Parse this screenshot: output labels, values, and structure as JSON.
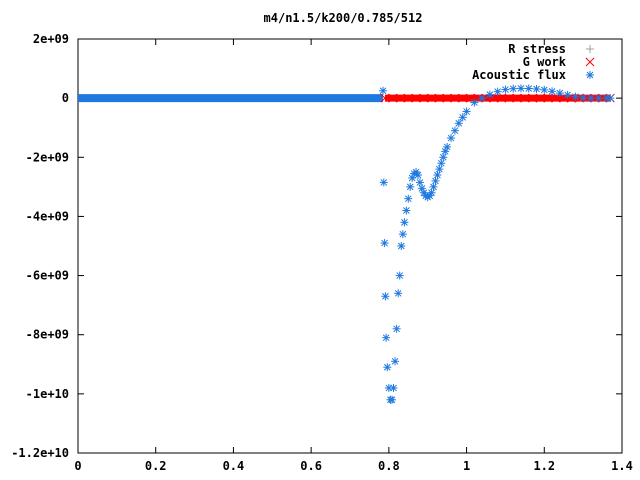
{
  "chart_data": {
    "type": "scatter",
    "title": "m4/n1.5/k200/0.785/512",
    "xlabel": "",
    "ylabel": "",
    "xlim": [
      0,
      1.4
    ],
    "ylim": [
      -12000000000.0,
      2000000000.0
    ],
    "grid": false,
    "legend_position": "top-right",
    "x_ticks": [
      "0",
      "0.2",
      "0.4",
      "0.6",
      "0.8",
      "1",
      "1.2",
      "1.4"
    ],
    "y_ticks": [
      "2e+09",
      "0",
      "-2e+09",
      "-4e+09",
      "-6e+09",
      "-8e+09",
      "-1e+10",
      "-1.2e+10"
    ],
    "x_tick_values": [
      0,
      0.2,
      0.4,
      0.6,
      0.8,
      1.0,
      1.2,
      1.4
    ],
    "y_tick_values": [
      2000000000.0,
      0,
      -2000000000.0,
      -4000000000.0,
      -6000000000.0,
      -8000000000.0,
      -10000000000.0,
      -12000000000.0
    ],
    "series": [
      {
        "name": "R stress",
        "marker": "plus",
        "color": "#a0a0a0",
        "x": [],
        "y": []
      },
      {
        "name": "G work",
        "marker": "cross",
        "color": "#ff0000",
        "x": [
          0.79,
          0.81,
          0.83,
          0.85,
          0.87,
          0.89,
          0.91,
          0.93,
          0.95,
          0.97,
          0.99,
          1.01,
          1.03,
          1.05,
          1.07,
          1.09,
          1.11,
          1.13,
          1.15,
          1.17,
          1.19,
          1.21,
          1.23,
          1.25,
          1.27,
          1.29,
          1.31,
          1.33,
          1.35,
          1.37
        ],
        "y": [
          0,
          0,
          0,
          0,
          0,
          0,
          0,
          0,
          0,
          0,
          0,
          0,
          0,
          0,
          0,
          0,
          0,
          0,
          0,
          0,
          0,
          0,
          0,
          0,
          0,
          0,
          0,
          0,
          0,
          0
        ]
      },
      {
        "name": "Acoustic flux",
        "marker": "star",
        "color": "#1e78e0",
        "x": [
          0.785,
          0.787,
          0.789,
          0.791,
          0.793,
          0.796,
          0.8,
          0.804,
          0.808,
          0.812,
          0.816,
          0.82,
          0.824,
          0.828,
          0.832,
          0.836,
          0.84,
          0.845,
          0.85,
          0.855,
          0.86,
          0.865,
          0.87,
          0.875,
          0.88,
          0.885,
          0.89,
          0.895,
          0.9,
          0.905,
          0.91,
          0.915,
          0.92,
          0.925,
          0.93,
          0.935,
          0.94,
          0.945,
          0.95,
          0.96,
          0.97,
          0.98,
          0.99,
          1.0,
          1.02,
          1.04,
          1.06,
          1.08,
          1.1,
          1.12,
          1.14,
          1.16,
          1.18,
          1.2,
          1.22,
          1.24,
          1.26,
          1.28,
          1.3,
          1.32,
          1.34,
          1.36,
          1.37
        ],
        "y": [
          250000000.0,
          -2850000000.0,
          -4900000000.0,
          -6700000000.0,
          -8100000000.0,
          -9100000000.0,
          -9800000000.0,
          -10200000000.0,
          -10200000000.0,
          -9800000000.0,
          -8900000000.0,
          -7800000000.0,
          -6600000000.0,
          -6000000000.0,
          -5000000000.0,
          -4600000000.0,
          -4200000000.0,
          -3800000000.0,
          -3400000000.0,
          -3000000000.0,
          -2700000000.0,
          -2550000000.0,
          -2500000000.0,
          -2600000000.0,
          -2850000000.0,
          -3050000000.0,
          -3200000000.0,
          -3300000000.0,
          -3350000000.0,
          -3300000000.0,
          -3200000000.0,
          -3000000000.0,
          -2800000000.0,
          -2600000000.0,
          -2400000000.0,
          -2200000000.0,
          -2000000000.0,
          -1800000000.0,
          -1650000000.0,
          -1350000000.0,
          -1100000000.0,
          -850000000.0,
          -650000000.0,
          -450000000.0,
          -150000000.0,
          0,
          120000000.0,
          220000000.0,
          290000000.0,
          320000000.0,
          330000000.0,
          325000000.0,
          310000000.0,
          280000000.0,
          230000000.0,
          170000000.0,
          110000000.0,
          50000000.0,
          10000000.0,
          0,
          0,
          0,
          0
        ]
      }
    ]
  }
}
